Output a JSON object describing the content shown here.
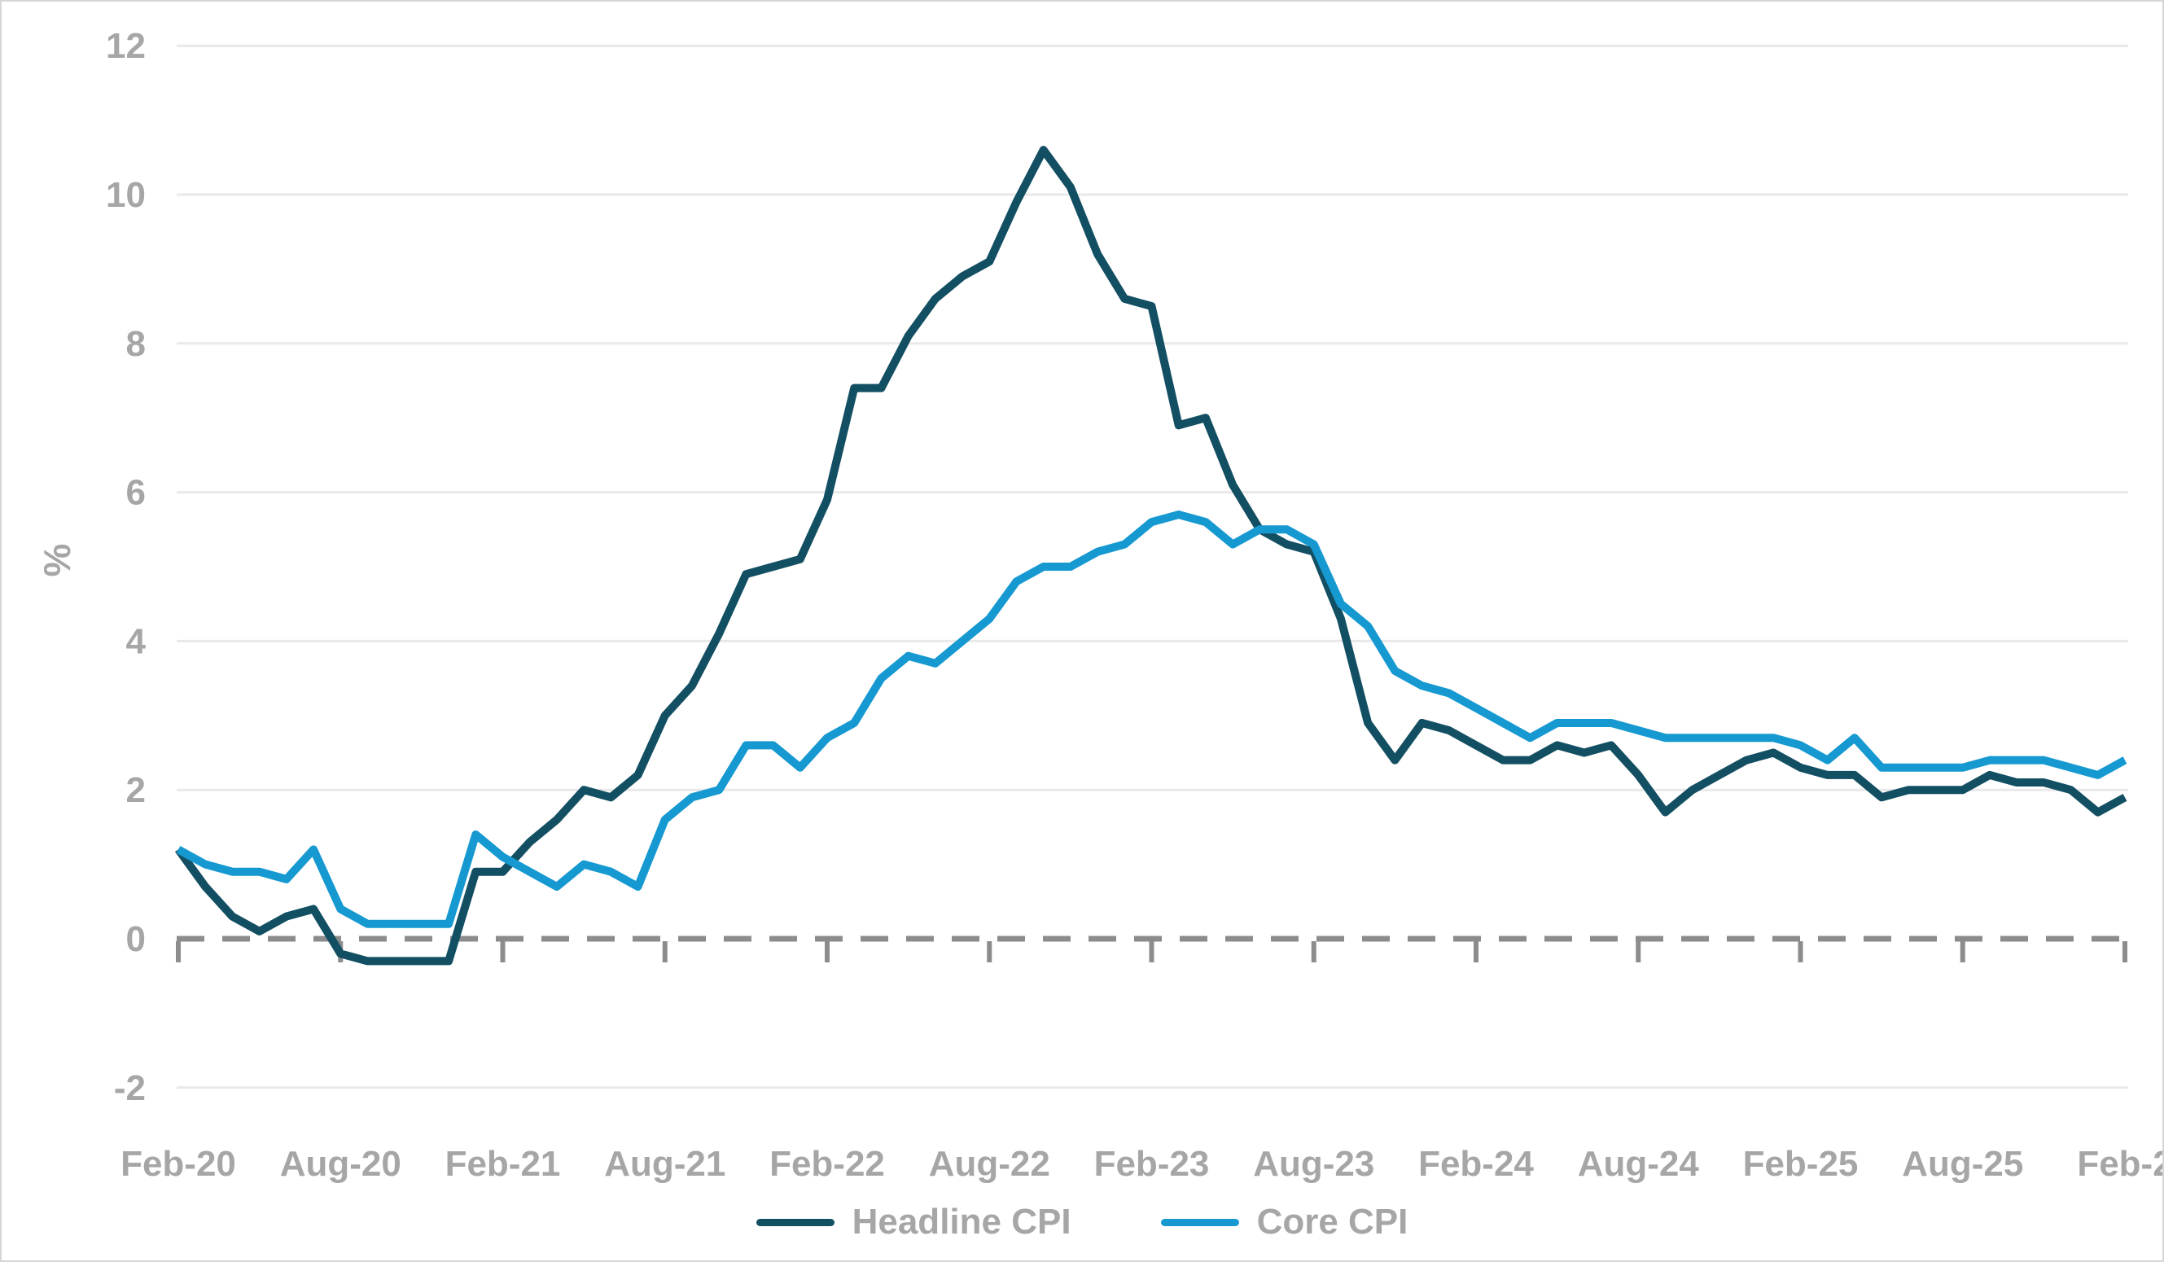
{
  "chart_data": {
    "type": "line",
    "title": "",
    "ylabel": "%",
    "xlabel": "",
    "x_tick_labels": [
      "Feb-20",
      "Aug-20",
      "Feb-21",
      "Aug-21",
      "Feb-22",
      "Aug-22",
      "Feb-23",
      "Aug-23",
      "Feb-24",
      "Aug-24",
      "Feb-25",
      "Aug-25",
      "Feb-2"
    ],
    "y_ticks": [
      12,
      10,
      8,
      6,
      4,
      2,
      0,
      -2
    ],
    "ylim": [
      -2,
      12
    ],
    "grid": "horizontal",
    "legend_position": "bottom-center",
    "zero_line_style": "dashed",
    "months": [
      "Feb-20",
      "Mar-20",
      "Apr-20",
      "May-20",
      "Jun-20",
      "Jul-20",
      "Aug-20",
      "Sep-20",
      "Oct-20",
      "Nov-20",
      "Dec-20",
      "Jan-21",
      "Feb-21",
      "Mar-21",
      "Apr-21",
      "May-21",
      "Jun-21",
      "Jul-21",
      "Aug-21",
      "Sep-21",
      "Oct-21",
      "Nov-21",
      "Dec-21",
      "Jan-22",
      "Feb-22",
      "Mar-22",
      "Apr-22",
      "May-22",
      "Jun-22",
      "Jul-22",
      "Aug-22",
      "Sep-22",
      "Oct-22",
      "Nov-22",
      "Dec-22",
      "Jan-23",
      "Feb-23",
      "Mar-23",
      "Apr-23",
      "May-23",
      "Jun-23",
      "Jul-23",
      "Aug-23",
      "Sep-23",
      "Oct-23",
      "Nov-23",
      "Dec-23",
      "Jan-24",
      "Feb-24",
      "Mar-24",
      "Apr-24",
      "May-24",
      "Jun-24",
      "Jul-24",
      "Aug-24",
      "Sep-24",
      "Oct-24",
      "Nov-24",
      "Dec-24",
      "Jan-25",
      "Feb-25",
      "Mar-25",
      "Apr-25",
      "May-25",
      "Jun-25",
      "Jul-25",
      "Aug-25",
      "Sep-25",
      "Oct-25",
      "Nov-25",
      "Dec-25",
      "Jan-26",
      "Feb-26"
    ],
    "series": [
      {
        "name": "Headline CPI",
        "color": "#134F63",
        "values": [
          1.2,
          0.7,
          0.3,
          0.1,
          0.3,
          0.4,
          -0.2,
          -0.3,
          -0.3,
          -0.3,
          -0.3,
          0.9,
          0.9,
          1.3,
          1.6,
          2.0,
          1.9,
          2.2,
          3.0,
          3.4,
          4.1,
          4.9,
          5.0,
          5.1,
          5.9,
          7.4,
          7.4,
          8.1,
          8.6,
          8.9,
          9.1,
          9.9,
          10.6,
          10.1,
          9.2,
          8.6,
          8.5,
          6.9,
          7.0,
          6.1,
          5.5,
          5.3,
          5.2,
          4.3,
          2.9,
          2.4,
          2.9,
          2.8,
          2.6,
          2.4,
          2.4,
          2.6,
          2.5,
          2.6,
          2.2,
          1.7,
          2.0,
          2.2,
          2.4,
          2.5,
          2.3,
          2.2,
          2.2,
          1.9,
          2.0,
          2.0,
          2.0,
          2.2,
          2.1,
          2.1,
          2.0,
          1.7,
          1.9
        ]
      },
      {
        "name": "Core CPI",
        "color": "#1699D1",
        "values": [
          1.2,
          1.0,
          0.9,
          0.9,
          0.8,
          1.2,
          0.4,
          0.2,
          0.2,
          0.2,
          0.2,
          1.4,
          1.1,
          0.9,
          0.7,
          1.0,
          0.9,
          0.7,
          1.6,
          1.9,
          2.0,
          2.6,
          2.6,
          2.3,
          2.7,
          2.9,
          3.5,
          3.8,
          3.7,
          4.0,
          4.3,
          4.8,
          5.0,
          5.0,
          5.2,
          5.3,
          5.6,
          5.7,
          5.6,
          5.3,
          5.5,
          5.5,
          5.3,
          4.5,
          4.2,
          3.6,
          3.4,
          3.3,
          3.1,
          2.9,
          2.7,
          2.9,
          2.9,
          2.9,
          2.8,
          2.7,
          2.7,
          2.7,
          2.7,
          2.7,
          2.6,
          2.4,
          2.7,
          2.3,
          2.3,
          2.3,
          2.3,
          2.4,
          2.4,
          2.4,
          2.3,
          2.2,
          2.4
        ]
      }
    ],
    "colors": {
      "gridline": "#E9E9E9",
      "zero_line": "#8C8C8C",
      "axis_text": "#A6A6A6",
      "background": "#FFFFFF",
      "frame_border": "#D6D6D6"
    }
  },
  "legend": {
    "items": [
      {
        "label": "Headline CPI"
      },
      {
        "label": "Core CPI"
      }
    ]
  }
}
